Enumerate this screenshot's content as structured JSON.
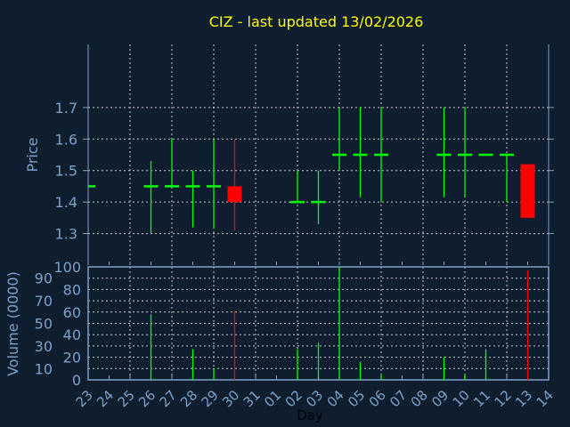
{
  "chart_data": {
    "type": "candlestick",
    "title": "CIZ - last updated 13/02/2026",
    "xlabel": "Day",
    "ylabel": "Price",
    "volume_label": "Volume (0000)",
    "x_ticks": [
      "23",
      "24",
      "25",
      "26",
      "27",
      "28",
      "29",
      "30",
      "31",
      "01",
      "02",
      "03",
      "04",
      "05",
      "06",
      "07",
      "08",
      "09",
      "10",
      "11",
      "12",
      "13",
      "14"
    ],
    "price_ylim": [
      1.2,
      1.9
    ],
    "price_ticks": [
      "1.3",
      "1.4",
      "1.5",
      "1.6",
      "1.7"
    ],
    "volume_ylim": [
      0,
      100
    ],
    "volume_ticks": [
      "0",
      "10",
      "20",
      "30",
      "40",
      "50",
      "60",
      "70",
      "80",
      "90",
      "100"
    ],
    "grid": true,
    "colors": {
      "up": "#00ff00",
      "down": "#ff0000",
      "background": "#0f1e2f",
      "axis": "#7da0c8",
      "title": "#ffff00",
      "grid": "#c8c8c8"
    },
    "candles": [
      {
        "day": "23",
        "open": 1.45,
        "high": 1.45,
        "low": 1.45,
        "close": 1.45,
        "volume": 0
      },
      {
        "day": "26",
        "open": 1.45,
        "high": 1.53,
        "low": 1.3,
        "close": 1.45,
        "volume": 58
      },
      {
        "day": "27",
        "open": 1.45,
        "high": 1.6,
        "low": 1.45,
        "close": 1.45,
        "volume": 0
      },
      {
        "day": "28",
        "open": 1.45,
        "high": 1.5,
        "low": 1.32,
        "close": 1.45,
        "volume": 27
      },
      {
        "day": "29",
        "open": 1.45,
        "high": 1.6,
        "low": 1.315,
        "close": 1.45,
        "volume": 10
      },
      {
        "day": "30",
        "open": 1.45,
        "high": 1.6,
        "low": 1.31,
        "close": 1.4,
        "volume": 61
      },
      {
        "day": "02",
        "open": 1.4,
        "high": 1.5,
        "low": 1.4,
        "close": 1.4,
        "volume": 27
      },
      {
        "day": "03",
        "open": 1.4,
        "high": 1.5,
        "low": 1.33,
        "close": 1.4,
        "volume": 33
      },
      {
        "day": "04",
        "open": 1.55,
        "high": 1.7,
        "low": 1.5,
        "close": 1.55,
        "volume": 100
      },
      {
        "day": "05",
        "open": 1.55,
        "high": 1.7,
        "low": 1.415,
        "close": 1.55,
        "volume": 16
      },
      {
        "day": "06",
        "open": 1.55,
        "high": 1.7,
        "low": 1.4,
        "close": 1.55,
        "volume": 5
      },
      {
        "day": "09",
        "open": 1.55,
        "high": 1.7,
        "low": 1.415,
        "close": 1.55,
        "volume": 20
      },
      {
        "day": "10",
        "open": 1.55,
        "high": 1.7,
        "low": 1.415,
        "close": 1.55,
        "volume": 5
      },
      {
        "day": "11",
        "open": 1.55,
        "high": 1.55,
        "low": 1.55,
        "close": 1.55,
        "volume": 27
      },
      {
        "day": "12",
        "open": 1.55,
        "high": 1.55,
        "low": 1.4,
        "close": 1.55,
        "volume": 0
      },
      {
        "day": "13",
        "open": 1.52,
        "high": 1.52,
        "low": 1.35,
        "close": 1.35,
        "volume": 97
      }
    ]
  }
}
